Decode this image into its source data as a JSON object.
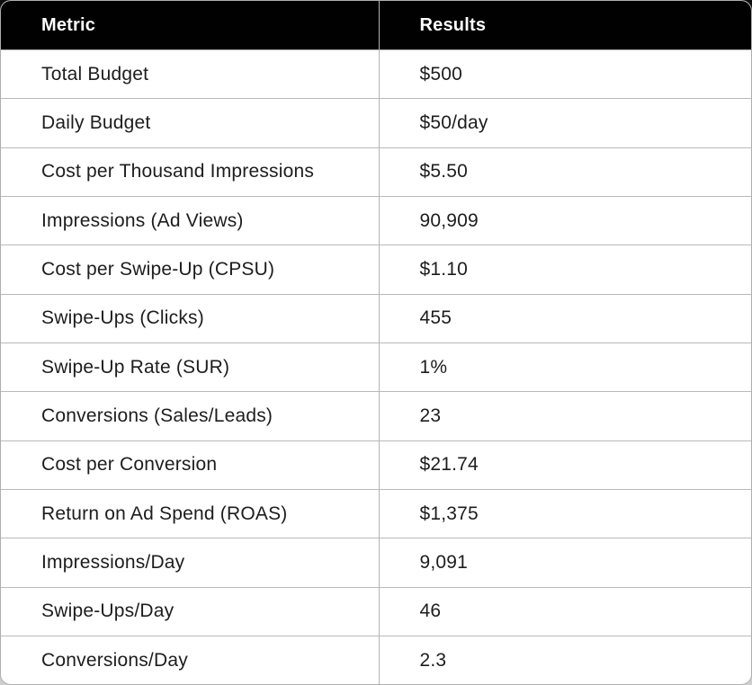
{
  "chart_data": {
    "type": "table",
    "columns": [
      "Metric",
      "Results"
    ],
    "rows": [
      [
        "Total Budget",
        "$500"
      ],
      [
        "Daily Budget",
        "$50/day"
      ],
      [
        "Cost per Thousand Impressions",
        "$5.50"
      ],
      [
        "Impressions (Ad Views)",
        "90,909"
      ],
      [
        "Cost per Swipe-Up (CPSU)",
        "$1.10"
      ],
      [
        "Swipe-Ups (Clicks)",
        "455"
      ],
      [
        "Swipe-Up Rate (SUR)",
        "1%"
      ],
      [
        "Conversions (Sales/Leads)",
        "23"
      ],
      [
        "Cost per Conversion",
        "$21.74"
      ],
      [
        "Return on Ad Spend (ROAS)",
        "$1,375"
      ],
      [
        "Impressions/Day",
        "9,091"
      ],
      [
        "Swipe-Ups/Day",
        "46"
      ],
      [
        "Conversions/Day",
        "2.3"
      ]
    ],
    "layout": {
      "header_position": "top",
      "grid": "horizontal-and-column-divider",
      "corner_radius_px": 12
    }
  },
  "colors": {
    "header_bg": "#010101",
    "header_text": "#ffffff",
    "body_text": "#1d1d1d",
    "grid_line": "#b3b3b3",
    "row_bg": "#ffffff",
    "outer_border": "#aeaeae"
  }
}
